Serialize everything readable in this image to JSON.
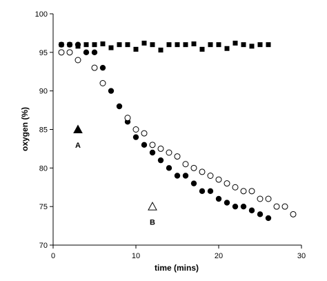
{
  "chart_data": {
    "type": "scatter",
    "xlabel": "time (mins)",
    "ylabel": "oxygen (%)",
    "xlim": [
      0,
      30
    ],
    "ylim": [
      70,
      100
    ],
    "xticks": [
      0,
      10,
      20,
      30
    ],
    "yticks": [
      70,
      75,
      80,
      85,
      90,
      95,
      100
    ],
    "grid": false,
    "series": [
      {
        "marker": "filled-square",
        "color": "#000000",
        "points": [
          [
            1,
            96
          ],
          [
            2,
            96
          ],
          [
            3,
            95.8
          ],
          [
            4,
            96
          ],
          [
            5,
            96
          ],
          [
            6,
            96.1
          ],
          [
            7,
            95.6
          ],
          [
            8,
            96
          ],
          [
            9,
            96
          ],
          [
            10,
            95.4
          ],
          [
            11,
            96.2
          ],
          [
            12,
            96
          ],
          [
            13,
            95.3
          ],
          [
            14,
            96
          ],
          [
            15,
            96
          ],
          [
            16,
            96
          ],
          [
            17,
            96.1
          ],
          [
            18,
            95.4
          ],
          [
            19,
            96
          ],
          [
            20,
            96
          ],
          [
            21,
            95.5
          ],
          [
            22,
            96.2
          ],
          [
            23,
            96
          ],
          [
            24,
            95.8
          ],
          [
            25,
            96
          ],
          [
            26,
            96
          ]
        ]
      },
      {
        "marker": "filled-circle",
        "color": "#000000",
        "points": [
          [
            1,
            96
          ],
          [
            2,
            96
          ],
          [
            3,
            96
          ],
          [
            4,
            95
          ],
          [
            5,
            95
          ],
          [
            6,
            93
          ],
          [
            7,
            90
          ],
          [
            8,
            88
          ],
          [
            9,
            86
          ],
          [
            10,
            84
          ],
          [
            11,
            83
          ],
          [
            12,
            82
          ],
          [
            13,
            81
          ],
          [
            14,
            80
          ],
          [
            15,
            79
          ],
          [
            16,
            79
          ],
          [
            17,
            78
          ],
          [
            18,
            77
          ],
          [
            19,
            77
          ],
          [
            20,
            76
          ],
          [
            21,
            75.5
          ],
          [
            22,
            75
          ],
          [
            23,
            75
          ],
          [
            24,
            74.5
          ],
          [
            25,
            74
          ],
          [
            26,
            73.5
          ]
        ]
      },
      {
        "marker": "open-circle",
        "color": "#000000",
        "points": [
          [
            1,
            95
          ],
          [
            2,
            95
          ],
          [
            3,
            94
          ],
          [
            5,
            93
          ],
          [
            6,
            91
          ],
          [
            9,
            86.5
          ],
          [
            10,
            85
          ],
          [
            11,
            84.5
          ],
          [
            12,
            83
          ],
          [
            13,
            82.5
          ],
          [
            14,
            82
          ],
          [
            15,
            81.5
          ],
          [
            16,
            80.5
          ],
          [
            17,
            80
          ],
          [
            18,
            79.5
          ],
          [
            19,
            79
          ],
          [
            20,
            78.5
          ],
          [
            21,
            78
          ],
          [
            22,
            77.5
          ],
          [
            23,
            77
          ],
          [
            24,
            77
          ],
          [
            25,
            76
          ],
          [
            26,
            76
          ],
          [
            27,
            75
          ],
          [
            28,
            75
          ],
          [
            29,
            74
          ]
        ]
      }
    ],
    "annotations": [
      {
        "label": "A",
        "marker": "filled-triangle",
        "x": 3,
        "y": 85,
        "label_y": 83
      },
      {
        "label": "B",
        "marker": "open-triangle",
        "x": 12,
        "y": 75,
        "label_y": 73
      }
    ]
  }
}
